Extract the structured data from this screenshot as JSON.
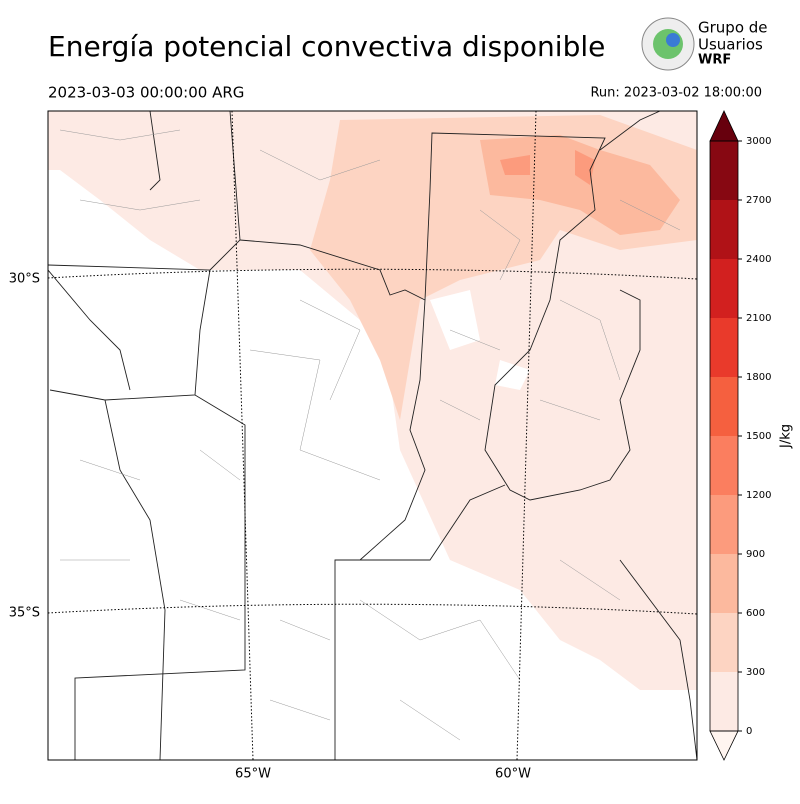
{
  "header": {
    "title": "Energía potencial convectiva disponible",
    "valid_time": "2023-03-03 00:00:00 ARG",
    "run": "Run: 2023-03-02 18:00:00"
  },
  "logo": {
    "line1": "Grupo de",
    "line2": "Usuarios",
    "line3": "WRF"
  },
  "map": {
    "lat_labels": [
      "30°S",
      "35°S"
    ],
    "lon_labels": [
      "65°W",
      "60°W"
    ]
  },
  "colorbar": {
    "label": "J/kg",
    "ticks": [
      0,
      300,
      600,
      900,
      1200,
      1500,
      1800,
      2100,
      2400,
      2700,
      3000
    ],
    "colors": [
      "#fdeae4",
      "#fdd4c2",
      "#fcb99e",
      "#fc9b7d",
      "#fb7e5f",
      "#f5603f",
      "#e93a2b",
      "#d2201f",
      "#b01217",
      "#870812"
    ],
    "under_color": "#fff5f0",
    "over_color": "#67000d"
  }
}
